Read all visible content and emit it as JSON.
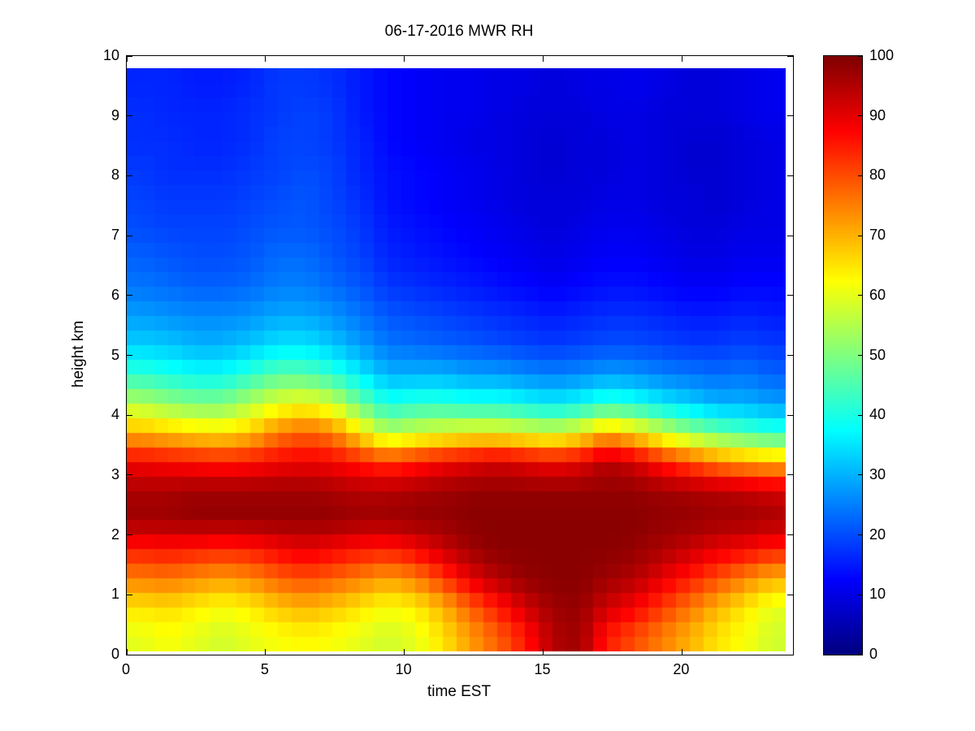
{
  "chart_data": {
    "type": "heatmap",
    "title": "06-17-2016 MWR RH",
    "xlabel": "time EST",
    "ylabel": "height km",
    "colormap": "jet",
    "xlim": [
      0,
      24
    ],
    "ylim": [
      0,
      10
    ],
    "zlim": [
      0,
      100
    ],
    "xticks": [
      0,
      5,
      10,
      15,
      20
    ],
    "yticks": [
      0,
      1,
      2,
      3,
      4,
      5,
      6,
      7,
      8,
      9,
      10
    ],
    "colorbar_ticks": [
      0,
      10,
      20,
      30,
      40,
      50,
      60,
      70,
      80,
      90,
      100
    ],
    "x_hours": [
      0,
      1,
      2,
      3,
      4,
      5,
      6,
      7,
      8,
      9,
      10,
      11,
      12,
      13,
      14,
      15,
      16,
      17,
      18,
      19,
      20,
      21,
      22,
      23
    ],
    "heights_km": [
      0.25,
      0.75,
      1.25,
      1.75,
      2.25,
      2.75,
      3.25,
      3.75,
      4.25,
      4.75,
      5.25,
      5.75,
      6.25,
      6.75,
      7.25,
      7.75,
      8.25,
      8.75,
      9.25,
      9.75
    ],
    "values": [
      [
        60,
        62,
        60,
        58,
        60,
        62,
        63,
        62,
        60,
        58,
        60,
        65,
        72,
        78,
        85,
        95,
        97,
        85,
        80,
        75,
        70,
        65,
        62,
        58
      ],
      [
        65,
        66,
        64,
        62,
        64,
        68,
        70,
        68,
        65,
        62,
        64,
        70,
        78,
        85,
        92,
        97,
        98,
        92,
        88,
        82,
        76,
        70,
        65,
        60
      ],
      [
        75,
        76,
        74,
        72,
        74,
        78,
        80,
        78,
        75,
        72,
        75,
        82,
        90,
        95,
        98,
        99,
        99,
        97,
        95,
        90,
        85,
        80,
        75,
        70
      ],
      [
        85,
        86,
        85,
        84,
        85,
        88,
        90,
        88,
        86,
        85,
        88,
        93,
        97,
        99,
        99,
        99,
        99,
        99,
        98,
        96,
        93,
        90,
        88,
        85
      ],
      [
        97,
        97,
        98,
        98,
        98,
        98,
        98,
        98,
        97,
        97,
        98,
        98,
        99,
        99,
        99,
        99,
        99,
        99,
        99,
        98,
        98,
        97,
        97,
        96
      ],
      [
        96,
        96,
        97,
        97,
        97,
        97,
        97,
        96,
        95,
        95,
        96,
        97,
        98,
        98,
        98,
        98,
        98,
        98,
        98,
        97,
        96,
        95,
        94,
        92
      ],
      [
        88,
        87,
        86,
        85,
        86,
        88,
        89,
        88,
        85,
        82,
        85,
        88,
        90,
        92,
        90,
        88,
        90,
        95,
        92,
        85,
        80,
        75,
        72,
        70
      ],
      [
        70,
        68,
        66,
        65,
        68,
        75,
        78,
        75,
        65,
        55,
        58,
        60,
        62,
        62,
        60,
        58,
        62,
        70,
        65,
        58,
        52,
        48,
        45,
        42
      ],
      [
        55,
        52,
        50,
        50,
        55,
        60,
        62,
        58,
        48,
        40,
        42,
        42,
        40,
        40,
        38,
        36,
        38,
        42,
        40,
        36,
        33,
        30,
        30,
        28
      ],
      [
        42,
        40,
        38,
        38,
        42,
        46,
        46,
        42,
        36,
        30,
        30,
        30,
        28,
        28,
        26,
        25,
        26,
        28,
        27,
        25,
        24,
        23,
        24,
        22
      ],
      [
        33,
        32,
        30,
        30,
        32,
        35,
        35,
        32,
        28,
        24,
        23,
        22,
        21,
        20,
        19,
        18,
        19,
        20,
        20,
        19,
        18,
        18,
        19,
        18
      ],
      [
        28,
        27,
        26,
        26,
        27,
        29,
        29,
        27,
        24,
        21,
        20,
        19,
        18,
        17,
        16,
        15,
        16,
        17,
        17,
        16,
        15,
        15,
        16,
        15
      ],
      [
        24,
        23,
        22,
        22,
        23,
        25,
        25,
        23,
        21,
        18,
        17,
        16,
        15,
        14,
        13,
        12,
        13,
        14,
        14,
        13,
        12,
        12,
        13,
        13
      ],
      [
        22,
        21,
        20,
        20,
        21,
        23,
        23,
        21,
        19,
        16,
        15,
        14,
        13,
        12,
        11,
        10,
        11,
        12,
        12,
        11,
        10,
        10,
        11,
        11
      ],
      [
        20,
        19,
        19,
        19,
        20,
        21,
        21,
        20,
        18,
        15,
        14,
        13,
        12,
        11,
        10,
        9,
        10,
        11,
        11,
        10,
        9,
        9,
        10,
        10
      ],
      [
        19,
        18,
        18,
        18,
        19,
        20,
        21,
        19,
        17,
        14,
        13,
        12,
        11,
        10,
        9,
        9,
        9,
        10,
        10,
        9,
        9,
        8,
        9,
        10
      ],
      [
        18,
        17,
        17,
        17,
        18,
        19,
        20,
        19,
        16,
        14,
        13,
        12,
        11,
        10,
        9,
        8,
        9,
        9,
        10,
        9,
        8,
        8,
        9,
        10
      ],
      [
        17,
        17,
        16,
        16,
        17,
        19,
        19,
        18,
        16,
        13,
        12,
        11,
        10,
        10,
        9,
        8,
        9,
        9,
        10,
        9,
        8,
        8,
        9,
        10
      ],
      [
        17,
        16,
        16,
        16,
        17,
        18,
        19,
        18,
        15,
        13,
        12,
        11,
        11,
        10,
        9,
        9,
        9,
        10,
        10,
        9,
        9,
        9,
        10,
        11
      ],
      [
        16,
        16,
        15,
        15,
        16,
        18,
        18,
        17,
        15,
        13,
        12,
        11,
        11,
        10,
        10,
        9,
        10,
        10,
        11,
        10,
        9,
        9,
        10,
        11
      ]
    ]
  }
}
